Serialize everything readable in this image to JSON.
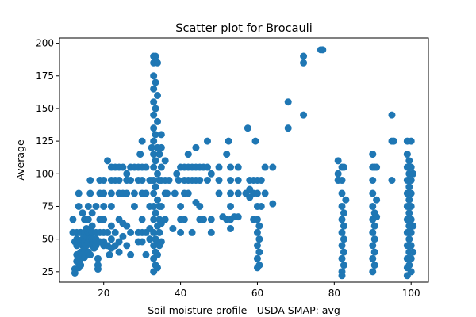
{
  "chart_data": {
    "type": "scatter",
    "title": "Scatter plot for Brocauli",
    "xlabel": "Soil moisture profile - USDA SMAP: avg",
    "ylabel": "Average",
    "xlim": [
      8.5,
      104.5
    ],
    "ylim": [
      17,
      204
    ],
    "xticks": [
      20,
      40,
      60,
      80,
      100
    ],
    "yticks": [
      25,
      50,
      75,
      100,
      125,
      150,
      175,
      200
    ],
    "grid": false,
    "marker_color": "#1f77b4",
    "points": [
      [
        12,
        55
      ],
      [
        12,
        65
      ],
      [
        12.5,
        48
      ],
      [
        12.5,
        27
      ],
      [
        12.5,
        24
      ],
      [
        13,
        38
      ],
      [
        13,
        33
      ],
      [
        13,
        45
      ],
      [
        13,
        50
      ],
      [
        13,
        55
      ],
      [
        13.5,
        35
      ],
      [
        13.5,
        28
      ],
      [
        13.5,
        75
      ],
      [
        13.5,
        85
      ],
      [
        14,
        55
      ],
      [
        14,
        48
      ],
      [
        14,
        40
      ],
      [
        14,
        35
      ],
      [
        14,
        30
      ],
      [
        14,
        55
      ],
      [
        14.5,
        70
      ],
      [
        14.5,
        50
      ],
      [
        14.5,
        45
      ],
      [
        14.5,
        38
      ],
      [
        15,
        65
      ],
      [
        15,
        55
      ],
      [
        15,
        48
      ],
      [
        15,
        45
      ],
      [
        15,
        42
      ],
      [
        15,
        36
      ],
      [
        15.5,
        65
      ],
      [
        15.5,
        58
      ],
      [
        15.5,
        52
      ],
      [
        15.5,
        45
      ],
      [
        15.5,
        40
      ],
      [
        16,
        75
      ],
      [
        16,
        65
      ],
      [
        16,
        55
      ],
      [
        16,
        48
      ],
      [
        16,
        40
      ],
      [
        16.5,
        95
      ],
      [
        16.5,
        85
      ],
      [
        16.5,
        55
      ],
      [
        16.5,
        50
      ],
      [
        16.5,
        38
      ],
      [
        17,
        70
      ],
      [
        17,
        60
      ],
      [
        17,
        55
      ],
      [
        17,
        50
      ],
      [
        17,
        45
      ],
      [
        17.5,
        48
      ],
      [
        17.5,
        43
      ],
      [
        18,
        75
      ],
      [
        18,
        55
      ],
      [
        18,
        48
      ],
      [
        18,
        45
      ],
      [
        18,
        50
      ],
      [
        18.5,
        35
      ],
      [
        18.5,
        30
      ],
      [
        18.5,
        27
      ],
      [
        19,
        95
      ],
      [
        19,
        85
      ],
      [
        19,
        65
      ],
      [
        19,
        55
      ],
      [
        19,
        48
      ],
      [
        20,
        95
      ],
      [
        20,
        85
      ],
      [
        20,
        75
      ],
      [
        20,
        65
      ],
      [
        20,
        55
      ],
      [
        20,
        48
      ],
      [
        20,
        45
      ],
      [
        21,
        110
      ],
      [
        21,
        55
      ],
      [
        21,
        45
      ],
      [
        21.5,
        38
      ],
      [
        22,
        105
      ],
      [
        22,
        95
      ],
      [
        22,
        85
      ],
      [
        22,
        75
      ],
      [
        22,
        60
      ],
      [
        22,
        50
      ],
      [
        22,
        43
      ],
      [
        23,
        105
      ],
      [
        23,
        95
      ],
      [
        23,
        55
      ],
      [
        23,
        45
      ],
      [
        24,
        105
      ],
      [
        24,
        95
      ],
      [
        24,
        85
      ],
      [
        24,
        65
      ],
      [
        24,
        48
      ],
      [
        24,
        40
      ],
      [
        25,
        105
      ],
      [
        25,
        85
      ],
      [
        25,
        62
      ],
      [
        25,
        52
      ],
      [
        26,
        100
      ],
      [
        26,
        95
      ],
      [
        26,
        85
      ],
      [
        26,
        60
      ],
      [
        26,
        45
      ],
      [
        27,
        105
      ],
      [
        27,
        95
      ],
      [
        27,
        55
      ],
      [
        27,
        38
      ],
      [
        28,
        105
      ],
      [
        28,
        85
      ],
      [
        28,
        75
      ],
      [
        29,
        105
      ],
      [
        29,
        95
      ],
      [
        29,
        55
      ],
      [
        29,
        48
      ],
      [
        29.5,
        115
      ],
      [
        30,
        125
      ],
      [
        30,
        105
      ],
      [
        30,
        95
      ],
      [
        30,
        85
      ],
      [
        30,
        65
      ],
      [
        30,
        55
      ],
      [
        30,
        48
      ],
      [
        31,
        105
      ],
      [
        31,
        85
      ],
      [
        31,
        55
      ],
      [
        31,
        38
      ],
      [
        32,
        95
      ],
      [
        32,
        75
      ],
      [
        32,
        58
      ],
      [
        32,
        50
      ],
      [
        32.5,
        120
      ],
      [
        32.5,
        95
      ],
      [
        33,
        190
      ],
      [
        33,
        185
      ],
      [
        33,
        175
      ],
      [
        33,
        165
      ],
      [
        33,
        155
      ],
      [
        33,
        145
      ],
      [
        33,
        135
      ],
      [
        33,
        125
      ],
      [
        33,
        115
      ],
      [
        33,
        105
      ],
      [
        33,
        95
      ],
      [
        33,
        85
      ],
      [
        33,
        75
      ],
      [
        33,
        65
      ],
      [
        33,
        55
      ],
      [
        33,
        45
      ],
      [
        33,
        35
      ],
      [
        33,
        25
      ],
      [
        33.5,
        190
      ],
      [
        33.5,
        170
      ],
      [
        33.5,
        150
      ],
      [
        33.5,
        130
      ],
      [
        33.5,
        110
      ],
      [
        33.5,
        90
      ],
      [
        33.5,
        70
      ],
      [
        33.5,
        50
      ],
      [
        33.5,
        40
      ],
      [
        33.5,
        30
      ],
      [
        34,
        185
      ],
      [
        34,
        160
      ],
      [
        34,
        140
      ],
      [
        34,
        120
      ],
      [
        34,
        100
      ],
      [
        34,
        80
      ],
      [
        34,
        60
      ],
      [
        34,
        48
      ],
      [
        34,
        38
      ],
      [
        34,
        28
      ],
      [
        34.5,
        115
      ],
      [
        34.5,
        95
      ],
      [
        34.5,
        75
      ],
      [
        34.5,
        65
      ],
      [
        34.5,
        55
      ],
      [
        34.5,
        45
      ],
      [
        35,
        130
      ],
      [
        35,
        120
      ],
      [
        35,
        105
      ],
      [
        35,
        95
      ],
      [
        35,
        75
      ],
      [
        35,
        62
      ],
      [
        35,
        48
      ],
      [
        36,
        110
      ],
      [
        36,
        95
      ],
      [
        36,
        85
      ],
      [
        36,
        65
      ],
      [
        36.5,
        85
      ],
      [
        37,
        95
      ],
      [
        38,
        58
      ],
      [
        38.5,
        85
      ],
      [
        39,
        100
      ],
      [
        39.5,
        95
      ],
      [
        40,
        105
      ],
      [
        40,
        75
      ],
      [
        40,
        65
      ],
      [
        40,
        55
      ],
      [
        41,
        105
      ],
      [
        41,
        95
      ],
      [
        41,
        85
      ],
      [
        41,
        65
      ],
      [
        42,
        115
      ],
      [
        42,
        105
      ],
      [
        42,
        95
      ],
      [
        42,
        85
      ],
      [
        43,
        105
      ],
      [
        43,
        95
      ],
      [
        43,
        55
      ],
      [
        44,
        120
      ],
      [
        44,
        105
      ],
      [
        44,
        95
      ],
      [
        44,
        78
      ],
      [
        45,
        105
      ],
      [
        45,
        95
      ],
      [
        45,
        75
      ],
      [
        45,
        65
      ],
      [
        46,
        105
      ],
      [
        46,
        65
      ],
      [
        47,
        125
      ],
      [
        47,
        105
      ],
      [
        47,
        95
      ],
      [
        48,
        100
      ],
      [
        48,
        65
      ],
      [
        48,
        55
      ],
      [
        50,
        105
      ],
      [
        50,
        95
      ],
      [
        50,
        85
      ],
      [
        51,
        67
      ],
      [
        52,
        115
      ],
      [
        52,
        65
      ],
      [
        52.5,
        125
      ],
      [
        53,
        105
      ],
      [
        53,
        95
      ],
      [
        53,
        85
      ],
      [
        53,
        75
      ],
      [
        53,
        65
      ],
      [
        53,
        58
      ],
      [
        54,
        67
      ],
      [
        55,
        105
      ],
      [
        55,
        95
      ],
      [
        55,
        85
      ],
      [
        55,
        67
      ],
      [
        57,
        85
      ],
      [
        57.5,
        135
      ],
      [
        58,
        95
      ],
      [
        58,
        88
      ],
      [
        58,
        82
      ],
      [
        59,
        95
      ],
      [
        59,
        85
      ],
      [
        59,
        65
      ],
      [
        59.5,
        125
      ],
      [
        60,
        95
      ],
      [
        60,
        85
      ],
      [
        60,
        75
      ],
      [
        60,
        65
      ],
      [
        60,
        55
      ],
      [
        60,
        45
      ],
      [
        60,
        35
      ],
      [
        60,
        28
      ],
      [
        60.5,
        60
      ],
      [
        60.5,
        50
      ],
      [
        60.5,
        40
      ],
      [
        60.5,
        30
      ],
      [
        61,
        95
      ],
      [
        61,
        75
      ],
      [
        62,
        105
      ],
      [
        62,
        85
      ],
      [
        64,
        105
      ],
      [
        64,
        77
      ],
      [
        68,
        155
      ],
      [
        68,
        135
      ],
      [
        72,
        190
      ],
      [
        72,
        185
      ],
      [
        72,
        145
      ],
      [
        76.5,
        195
      ],
      [
        77,
        195
      ],
      [
        81,
        110
      ],
      [
        81,
        100
      ],
      [
        81,
        95
      ],
      [
        82,
        105
      ],
      [
        82,
        95
      ],
      [
        82,
        85
      ],
      [
        82,
        75
      ],
      [
        82,
        65
      ],
      [
        82,
        55
      ],
      [
        82,
        45
      ],
      [
        82,
        35
      ],
      [
        82,
        25
      ],
      [
        82,
        22
      ],
      [
        82.5,
        105
      ],
      [
        82.5,
        70
      ],
      [
        82.5,
        60
      ],
      [
        82.5,
        50
      ],
      [
        82.5,
        40
      ],
      [
        82.5,
        30
      ],
      [
        83,
        80
      ],
      [
        90,
        115
      ],
      [
        90,
        105
      ],
      [
        90,
        95
      ],
      [
        90,
        85
      ],
      [
        90,
        75
      ],
      [
        90,
        65
      ],
      [
        90,
        55
      ],
      [
        90,
        45
      ],
      [
        90,
        35
      ],
      [
        90,
        25
      ],
      [
        90.5,
        105
      ],
      [
        90.5,
        70
      ],
      [
        90.5,
        60
      ],
      [
        90.5,
        50
      ],
      [
        90.5,
        40
      ],
      [
        90.5,
        30
      ],
      [
        91,
        105
      ],
      [
        91,
        80
      ],
      [
        91,
        67
      ],
      [
        95,
        145
      ],
      [
        95,
        125
      ],
      [
        95,
        95
      ],
      [
        95.5,
        125
      ],
      [
        99,
        125
      ],
      [
        99,
        115
      ],
      [
        99,
        105
      ],
      [
        99,
        95
      ],
      [
        99,
        85
      ],
      [
        99,
        75
      ],
      [
        99,
        65
      ],
      [
        99,
        55
      ],
      [
        99,
        45
      ],
      [
        99,
        35
      ],
      [
        99,
        28
      ],
      [
        99,
        22
      ],
      [
        99.5,
        110
      ],
      [
        99.5,
        100
      ],
      [
        99.5,
        90
      ],
      [
        99.5,
        80
      ],
      [
        99.5,
        70
      ],
      [
        99.5,
        60
      ],
      [
        99.5,
        50
      ],
      [
        99.5,
        40
      ],
      [
        99.5,
        30
      ],
      [
        100,
        125
      ],
      [
        100,
        105
      ],
      [
        100,
        95
      ],
      [
        100,
        85
      ],
      [
        100,
        75
      ],
      [
        100,
        65
      ],
      [
        100,
        55
      ],
      [
        100,
        45
      ],
      [
        100,
        35
      ],
      [
        100,
        25
      ],
      [
        100.5,
        100
      ],
      [
        100.5,
        60
      ],
      [
        100.5,
        40
      ]
    ]
  }
}
